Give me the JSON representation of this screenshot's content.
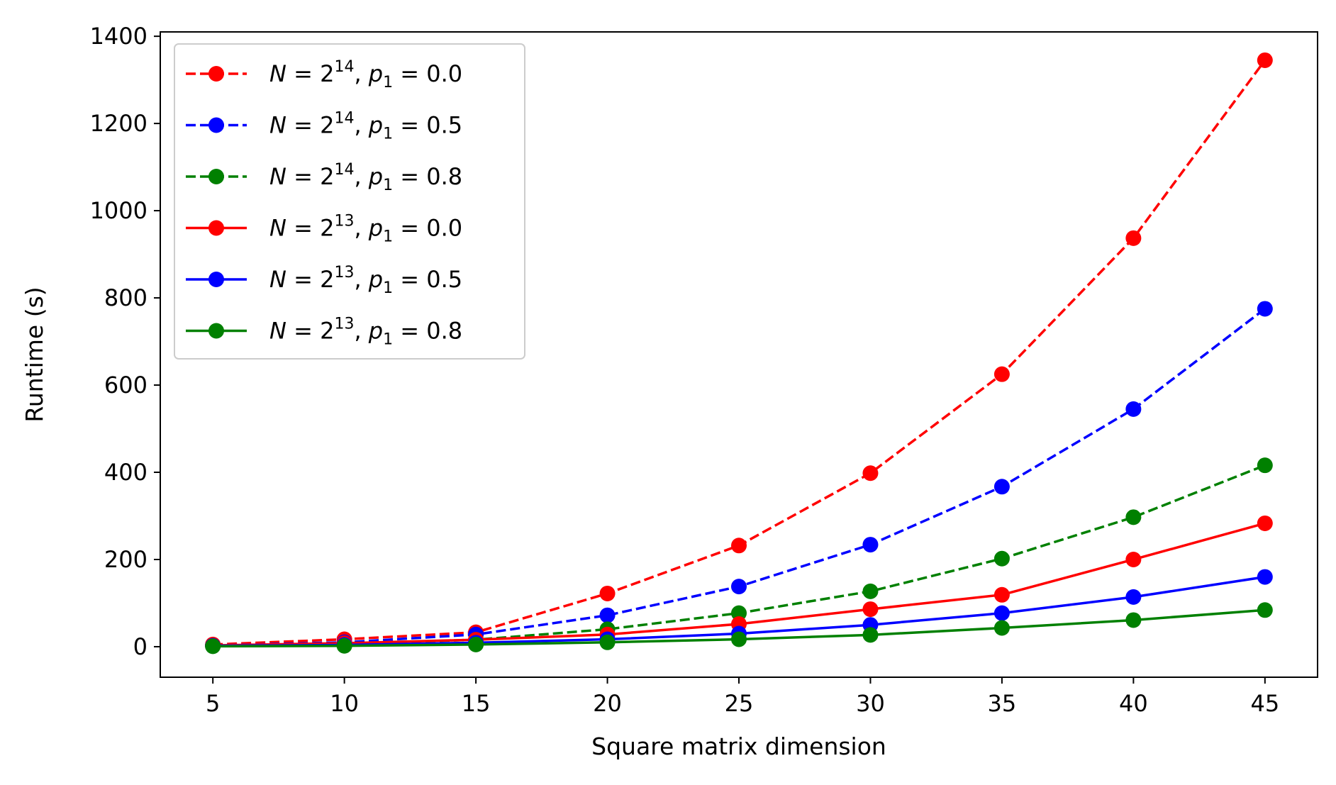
{
  "chart_data": {
    "type": "line",
    "title": "",
    "xlabel": "Square matrix dimension",
    "ylabel": "Runtime (s)",
    "xlim": [
      3.0,
      47.0
    ],
    "ylim": [
      -70,
      1410
    ],
    "xticks": [
      5,
      10,
      15,
      20,
      25,
      30,
      35,
      40,
      45
    ],
    "yticks": [
      0,
      200,
      400,
      600,
      800,
      1000,
      1200,
      1400
    ],
    "grid": false,
    "legend_position": "top-left",
    "x": [
      5,
      10,
      15,
      20,
      25,
      30,
      35,
      40,
      45
    ],
    "series": [
      {
        "name": "N = 2^14, p1 = 0.0",
        "N_exp": "14",
        "p1": "0.0",
        "color": "#ff0000",
        "linestyle": "dashed",
        "values": [
          5,
          17,
          33,
          122,
          232,
          398,
          625,
          937,
          1345
        ]
      },
      {
        "name": "N = 2^14, p1 = 0.5",
        "N_exp": "14",
        "p1": "0.5",
        "color": "#0000ff",
        "linestyle": "dashed",
        "values": [
          3,
          10,
          28,
          72,
          138,
          234,
          367,
          545,
          775
        ]
      },
      {
        "name": "N = 2^14, p1 = 0.8",
        "N_exp": "14",
        "p1": "0.8",
        "color": "#008000",
        "linestyle": "dashed",
        "values": [
          2,
          6,
          16,
          40,
          77,
          127,
          202,
          297,
          416
        ]
      },
      {
        "name": "N = 2^13, p1 = 0.0",
        "N_exp": "13",
        "p1": "0.0",
        "color": "#ff0000",
        "linestyle": "solid",
        "values": [
          3,
          8,
          16,
          28,
          52,
          86,
          119,
          200,
          283
        ]
      },
      {
        "name": "N = 2^13, p1 = 0.5",
        "N_exp": "13",
        "p1": "0.5",
        "color": "#0000ff",
        "linestyle": "solid",
        "values": [
          2,
          4,
          9,
          17,
          30,
          50,
          77,
          114,
          160
        ]
      },
      {
        "name": "N = 2^13, p1 = 0.8",
        "N_exp": "13",
        "p1": "0.8",
        "color": "#008000",
        "linestyle": "solid",
        "values": [
          1,
          2,
          5,
          10,
          17,
          27,
          43,
          61,
          84
        ]
      }
    ]
  }
}
